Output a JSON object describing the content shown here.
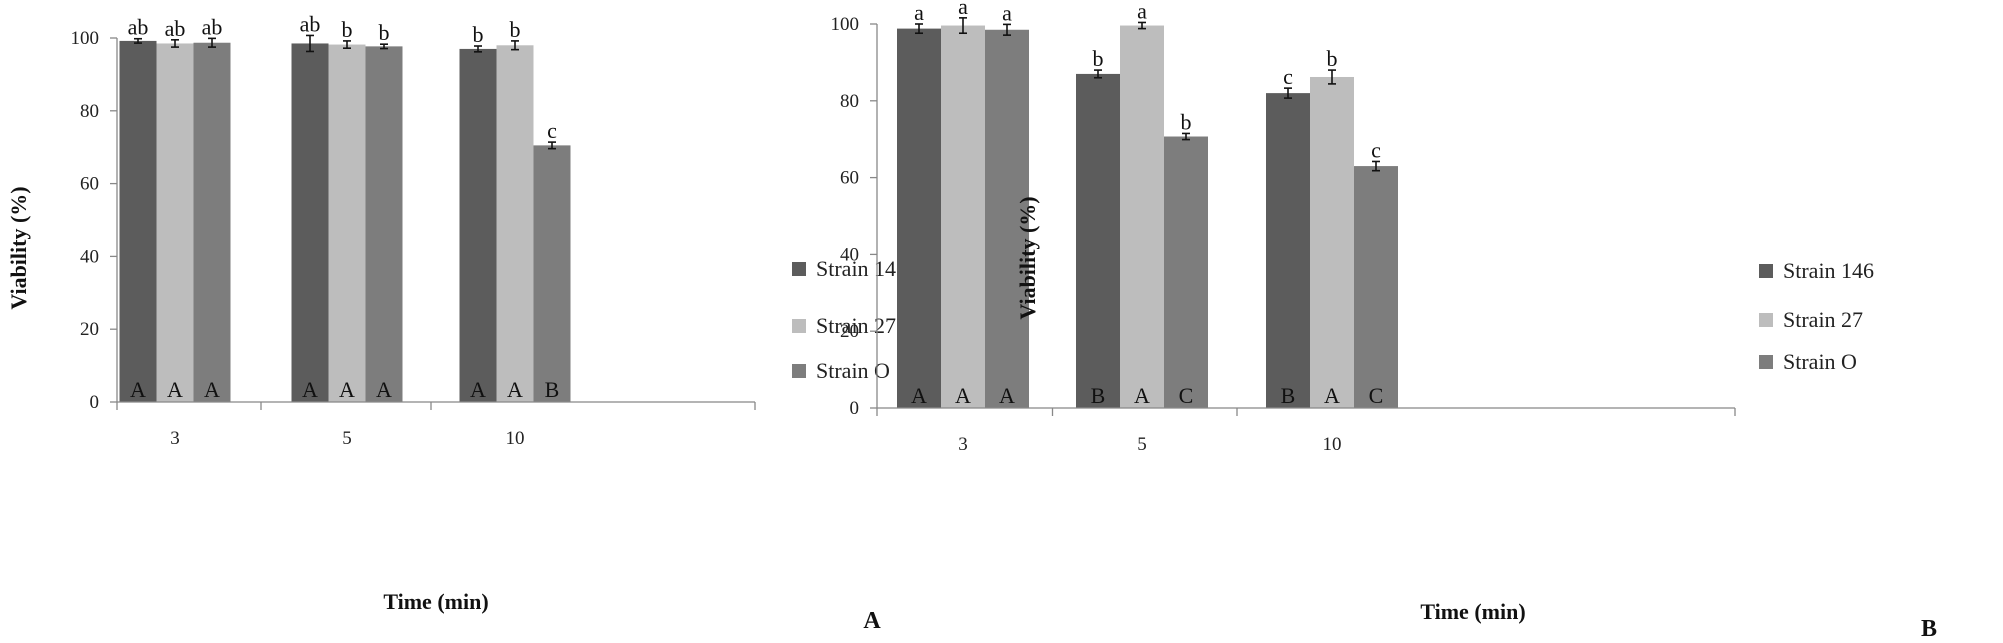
{
  "chart_data": [
    {
      "type": "bar",
      "panel_label": "A",
      "xlabel": "Time (min)",
      "ylabel": "Viability (%)",
      "ylim": [
        0,
        100
      ],
      "yticks": [
        0,
        20,
        40,
        60,
        80,
        100
      ],
      "categories": [
        "3",
        "5",
        "10"
      ],
      "grid": false,
      "legend_position": "right",
      "series": [
        {
          "name": "Strain 146",
          "color": "#5c5c5c",
          "values": [
            99.2,
            98.5,
            97.0
          ],
          "errors": [
            0.6,
            2.2,
            0.8
          ],
          "top_labels": [
            "ab",
            "ab",
            "b"
          ],
          "bottom_labels": [
            "A",
            "A",
            "A"
          ]
        },
        {
          "name": "Strain 27",
          "color": "#bdbdbd",
          "values": [
            98.5,
            98.2,
            98.0
          ],
          "errors": [
            1.0,
            1.0,
            1.2
          ],
          "top_labels": [
            "ab",
            "b",
            "b"
          ],
          "bottom_labels": [
            "A",
            "A",
            "A"
          ]
        },
        {
          "name": "Strain O",
          "color": "#7d7d7d",
          "values": [
            98.7,
            97.7,
            70.5
          ],
          "errors": [
            1.2,
            0.6,
            0.9
          ],
          "top_labels": [
            "ab",
            "b",
            "c"
          ],
          "bottom_labels": [
            "A",
            "A",
            "B"
          ]
        }
      ]
    },
    {
      "type": "bar",
      "panel_label": "B",
      "xlabel": "Time (min)",
      "ylabel": "Viability (%)",
      "ylim": [
        0,
        100
      ],
      "yticks": [
        0,
        20,
        40,
        60,
        80,
        100
      ],
      "categories": [
        "3",
        "5",
        "10"
      ],
      "grid": false,
      "legend_position": "right",
      "series": [
        {
          "name": "Strain 146",
          "color": "#5c5c5c",
          "values": [
            98.8,
            87.0,
            82.0
          ],
          "errors": [
            1.2,
            1.0,
            1.3
          ],
          "top_labels": [
            "a",
            "b",
            "c"
          ],
          "bottom_labels": [
            "A",
            "B",
            "B"
          ]
        },
        {
          "name": "Strain 27",
          "color": "#bdbdbd",
          "values": [
            99.6,
            99.6,
            86.2
          ],
          "errors": [
            2.0,
            0.8,
            1.8
          ],
          "top_labels": [
            "a",
            "a",
            "b"
          ],
          "bottom_labels": [
            "A",
            "A",
            "A"
          ]
        },
        {
          "name": "Strain O",
          "color": "#7d7d7d",
          "values": [
            98.5,
            70.7,
            63.0
          ],
          "errors": [
            1.4,
            0.8,
            1.2
          ],
          "top_labels": [
            "a",
            "b",
            "c"
          ],
          "bottom_labels": [
            "A",
            "C",
            "C"
          ]
        }
      ]
    }
  ]
}
